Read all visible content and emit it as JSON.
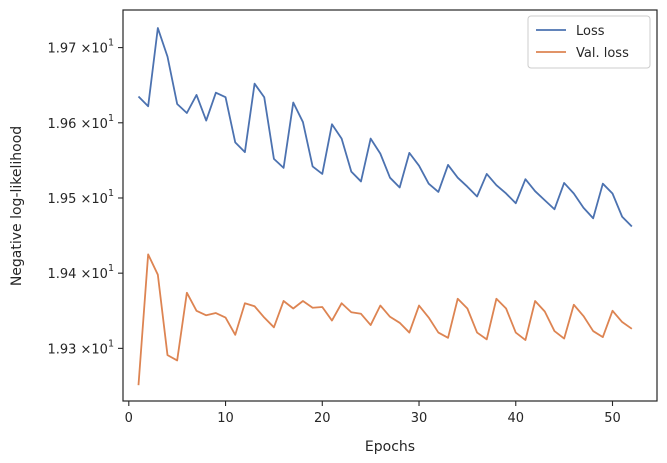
{
  "chart_data": {
    "type": "line",
    "xlabel": "Epochs",
    "ylabel": "Negative log-likelihood",
    "xlim": [
      -0.6,
      54.6
    ],
    "ylim": [
      19.23,
      19.75
    ],
    "xticks": [
      {
        "value": 0,
        "label": "0"
      },
      {
        "value": 10,
        "label": "10"
      },
      {
        "value": 20,
        "label": "20"
      },
      {
        "value": 30,
        "label": "30"
      },
      {
        "value": 40,
        "label": "40"
      },
      {
        "value": 50,
        "label": "50"
      }
    ],
    "yticks": [
      {
        "value": 19.3,
        "mantissa": "1.93",
        "exponent": "1"
      },
      {
        "value": 19.4,
        "mantissa": "1.94",
        "exponent": "1"
      },
      {
        "value": 19.5,
        "mantissa": "1.95",
        "exponent": "1"
      },
      {
        "value": 19.6,
        "mantissa": "1.96",
        "exponent": "1"
      },
      {
        "value": 19.7,
        "mantissa": "1.97",
        "exponent": "1"
      }
    ],
    "tick_prefix": "×10",
    "grid": false,
    "legend_position": "top-right",
    "x": [
      1,
      2,
      3,
      4,
      5,
      6,
      7,
      8,
      9,
      10,
      11,
      12,
      13,
      14,
      15,
      16,
      17,
      18,
      19,
      20,
      21,
      22,
      23,
      24,
      25,
      26,
      27,
      28,
      29,
      30,
      31,
      32,
      33,
      34,
      35,
      36,
      37,
      38,
      39,
      40,
      41,
      42,
      43,
      44,
      45,
      46,
      47,
      48,
      49,
      50,
      51,
      52
    ],
    "series": [
      {
        "name": "Loss",
        "color": "#4c72b0",
        "values": [
          19.635,
          19.622,
          19.726,
          19.688,
          19.625,
          19.613,
          19.637,
          19.603,
          19.64,
          19.634,
          19.574,
          19.561,
          19.652,
          19.634,
          19.552,
          19.54,
          19.627,
          19.601,
          19.542,
          19.532,
          19.598,
          19.579,
          19.535,
          19.522,
          19.579,
          19.559,
          19.527,
          19.514,
          19.56,
          19.543,
          19.519,
          19.508,
          19.544,
          19.527,
          19.515,
          19.502,
          19.532,
          19.517,
          19.506,
          19.493,
          19.525,
          19.509,
          19.497,
          19.485,
          19.52,
          19.506,
          19.487,
          19.473,
          19.519,
          19.506,
          19.475,
          19.462
        ]
      },
      {
        "name": "Val. loss",
        "color": "#dd8452",
        "values": [
          19.251,
          19.425,
          19.398,
          19.291,
          19.284,
          19.374,
          19.35,
          19.344,
          19.347,
          19.341,
          19.318,
          19.36,
          19.356,
          19.341,
          19.328,
          19.363,
          19.353,
          19.363,
          19.354,
          19.355,
          19.337,
          19.36,
          19.348,
          19.346,
          19.331,
          19.357,
          19.342,
          19.334,
          19.321,
          19.357,
          19.341,
          19.321,
          19.314,
          19.366,
          19.353,
          19.321,
          19.312,
          19.366,
          19.353,
          19.321,
          19.311,
          19.363,
          19.349,
          19.323,
          19.313,
          19.358,
          19.343,
          19.323,
          19.315,
          19.35,
          19.335,
          19.326
        ]
      }
    ]
  }
}
